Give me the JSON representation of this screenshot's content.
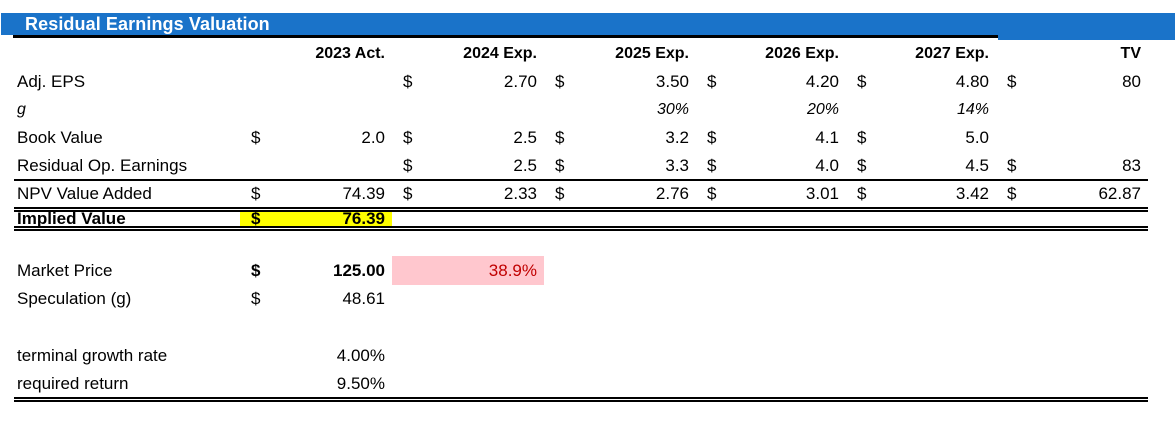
{
  "title": "Residual Earnings Valuation",
  "colors": {
    "banner_blue": "#1a73c9",
    "highlight_yellow": "#ffff00",
    "warning_pink_bg": "#ffc7ce",
    "warning_red_text": "#c00000"
  },
  "columns": {
    "c1": "2023 Act.",
    "c2": "2024 Exp.",
    "c3": "2025 Exp.",
    "c4": "2026 Exp.",
    "c5": "2027 Exp.",
    "c6": "TV"
  },
  "rows": {
    "adj_eps": {
      "label": "Adj. EPS",
      "d1": "",
      "v1": "",
      "d2": "$",
      "v2": "2.70",
      "d3": "$",
      "v3": "3.50",
      "d4": "$",
      "v4": "4.20",
      "d5": "$",
      "v5": "4.80",
      "d6": "$",
      "v6": "80"
    },
    "g": {
      "label": "g",
      "v1": "",
      "v2": "",
      "v3": "30%",
      "v4": "20%",
      "v5": "14%",
      "v6": ""
    },
    "book_value": {
      "label": "Book Value",
      "d1": "$",
      "v1": "2.0",
      "d2": "$",
      "v2": "2.5",
      "d3": "$",
      "v3": "3.2",
      "d4": "$",
      "v4": "4.1",
      "d5": "$",
      "v5": "5.0",
      "d6": "",
      "v6": ""
    },
    "residual_op": {
      "label": "Residual Op. Earnings",
      "d1": "",
      "v1": "",
      "d2": "$",
      "v2": "2.5",
      "d3": "$",
      "v3": "3.3",
      "d4": "$",
      "v4": "4.0",
      "d5": "$",
      "v5": "4.5",
      "d6": "$",
      "v6": "83"
    },
    "npv": {
      "label": "NPV Value Added",
      "d1": "$",
      "v1": "74.39",
      "d2": "$",
      "v2": "2.33",
      "d3": "$",
      "v3": "2.76",
      "d4": "$",
      "v4": "3.01",
      "d5": "$",
      "v5": "3.42",
      "d6": "$",
      "v6": "62.87"
    },
    "implied": {
      "label": "Implied Value",
      "d1": "$",
      "v1": "76.39"
    },
    "market": {
      "label": "Market Price",
      "d1": "$",
      "v1": "125.00",
      "premium": "38.9%"
    },
    "speculation": {
      "label": "Speculation (g)",
      "d1": "$",
      "v1": "48.61"
    },
    "terminal": {
      "label": "terminal growth rate",
      "v1": "4.00%"
    },
    "required": {
      "label": "required return",
      "v1": "9.50%"
    }
  }
}
